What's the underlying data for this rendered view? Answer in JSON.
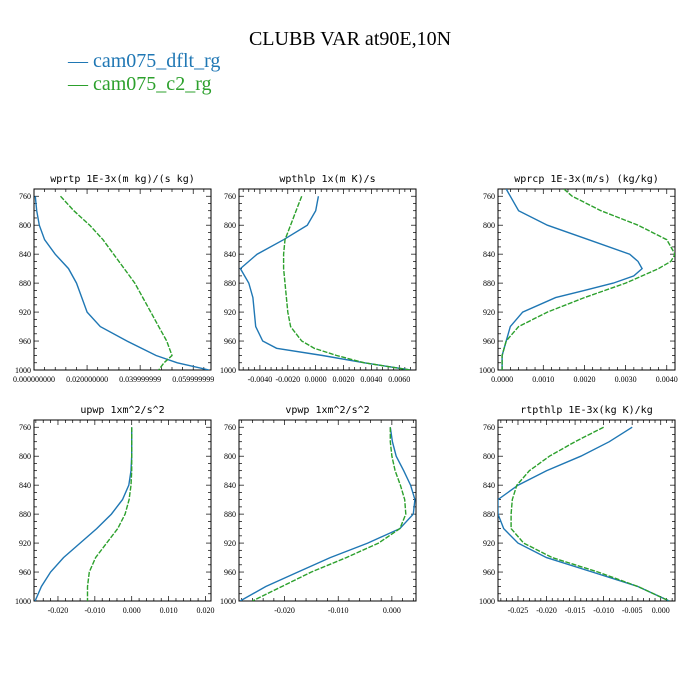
{
  "title": "CLUBB VAR at90E,10N",
  "legend": [
    {
      "label": "— cam075_dflt_rg",
      "color": "#1f77b4"
    },
    {
      "label": "— cam075_c2_rg",
      "color": "#2ca02c"
    }
  ],
  "chart_data": [
    {
      "type": "line",
      "title": "wprtp  1E-3x(m kg)/(s kg)",
      "xlim": [
        0.0,
        0.0667
      ],
      "ylim": [
        1000,
        750
      ],
      "xticks": [
        0.0,
        0.02,
        0.04,
        0.06
      ],
      "xtick_labels": [
        "0.000000000",
        "0.020000000",
        "0.039999999",
        "0.059999999"
      ],
      "yticks": [
        760,
        800,
        840,
        880,
        920,
        960,
        1000
      ],
      "y": [
        760,
        780,
        800,
        820,
        840,
        860,
        880,
        900,
        920,
        940,
        960,
        980,
        990,
        1000
      ],
      "series": [
        {
          "name": "cam075_dflt_rg",
          "color": "#1f77b4",
          "x": [
            0.0005,
            0.001,
            0.002,
            0.004,
            0.008,
            0.013,
            0.016,
            0.018,
            0.02,
            0.025,
            0.035,
            0.046,
            0.054,
            0.066
          ]
        },
        {
          "name": "cam075_c2_rg",
          "color": "#2ca02c",
          "x": [
            0.01,
            0.015,
            0.021,
            0.026,
            0.03,
            0.034,
            0.038,
            0.041,
            0.044,
            0.047,
            0.05,
            0.052,
            0.049,
            0.047
          ]
        }
      ]
    },
    {
      "type": "line",
      "title": "wpthlp  1x(m K)/s",
      "xlim": [
        -0.0055,
        0.0072
      ],
      "ylim": [
        1000,
        750
      ],
      "xticks": [
        -0.004,
        -0.002,
        0.0,
        0.002,
        0.004,
        0.006
      ],
      "xtick_labels": [
        "-0.0040",
        "-0.0020",
        "0.0000",
        "0.0020",
        "0.0040",
        "0.0060"
      ],
      "yticks": [
        760,
        800,
        840,
        880,
        920,
        960,
        1000
      ],
      "y": [
        760,
        780,
        800,
        820,
        840,
        860,
        880,
        900,
        920,
        940,
        960,
        970,
        980,
        990,
        1000
      ],
      "series": [
        {
          "name": "cam075_dflt_rg",
          "color": "#1f77b4",
          "x": [
            0.0002,
            0.0,
            -0.0006,
            -0.0023,
            -0.0042,
            -0.0054,
            -0.0048,
            -0.0045,
            -0.0044,
            -0.0043,
            -0.0038,
            -0.0028,
            0.0005,
            0.0035,
            0.0068
          ]
        },
        {
          "name": "cam075_c2_rg",
          "color": "#2ca02c",
          "x": [
            -0.001,
            -0.0014,
            -0.0018,
            -0.0022,
            -0.0023,
            -0.0023,
            -0.0022,
            -0.0021,
            -0.002,
            -0.0018,
            -0.001,
            -0.0001,
            0.0015,
            0.0035,
            0.0068
          ]
        }
      ]
    },
    {
      "type": "line",
      "title": "wprcp  1E-3x(m/s) (kg/kg)",
      "xlim": [
        -0.0001,
        0.0042
      ],
      "ylim": [
        1000,
        750
      ],
      "xticks": [
        0.0,
        0.001,
        0.002,
        0.003,
        0.004
      ],
      "xtick_labels": [
        "0.0000",
        "0.0010",
        "0.0020",
        "0.0030",
        "0.0040"
      ],
      "yticks": [
        760,
        800,
        840,
        880,
        920,
        960,
        1000
      ],
      "y": [
        750,
        760,
        780,
        800,
        820,
        840,
        850,
        860,
        870,
        880,
        890,
        900,
        920,
        940,
        960,
        980,
        1000
      ],
      "series": [
        {
          "name": "cam075_dflt_rg",
          "color": "#1f77b4",
          "x": [
            0.0001,
            0.0002,
            0.0004,
            0.0011,
            0.0021,
            0.0031,
            0.0033,
            0.0034,
            0.0032,
            0.0027,
            0.002,
            0.0013,
            0.0005,
            0.0002,
            0.0001,
            0.0,
            0.0
          ]
        },
        {
          "name": "cam075_c2_rg",
          "color": "#2ca02c",
          "x": [
            0.0015,
            0.0017,
            0.0024,
            0.0033,
            0.004,
            0.0042,
            0.0041,
            0.0038,
            0.0034,
            0.003,
            0.0025,
            0.002,
            0.0011,
            0.0004,
            0.0001,
            0.0,
            0.0
          ]
        }
      ]
    },
    {
      "type": "line",
      "title": "upwp  1xm^2/s^2",
      "xlim": [
        -0.0265,
        0.0215
      ],
      "ylim": [
        1000,
        750
      ],
      "xticks": [
        -0.02,
        -0.01,
        0.0,
        0.01,
        0.02
      ],
      "xtick_labels": [
        "-0.020",
        "-0.010",
        "0.000",
        "0.010",
        "0.020"
      ],
      "yticks": [
        760,
        800,
        840,
        880,
        920,
        960,
        1000
      ],
      "y": [
        760,
        780,
        800,
        820,
        840,
        860,
        880,
        900,
        920,
        940,
        960,
        980,
        1000
      ],
      "series": [
        {
          "name": "cam075_dflt_rg",
          "color": "#1f77b4",
          "x": [
            0.0,
            0.0,
            0.0,
            -0.0002,
            -0.0008,
            -0.0025,
            -0.0055,
            -0.0095,
            -0.014,
            -0.0185,
            -0.022,
            -0.0245,
            -0.0262
          ]
        },
        {
          "name": "cam075_c2_rg",
          "color": "#2ca02c",
          "x": [
            0.0,
            0.0,
            0.0,
            0.0,
            -0.0002,
            -0.0007,
            -0.0018,
            -0.0038,
            -0.0068,
            -0.0098,
            -0.0115,
            -0.012,
            -0.012
          ]
        }
      ]
    },
    {
      "type": "line",
      "title": "vpwp  1xm^2/s^2",
      "xlim": [
        -0.0285,
        0.0045
      ],
      "ylim": [
        1000,
        750
      ],
      "xticks": [
        -0.02,
        -0.01,
        0.0
      ],
      "xtick_labels": [
        "-0.020",
        "-0.010",
        "0.000"
      ],
      "yticks": [
        760,
        800,
        840,
        880,
        920,
        960,
        1000
      ],
      "y": [
        760,
        780,
        800,
        820,
        840,
        860,
        880,
        900,
        920,
        940,
        960,
        980,
        1000
      ],
      "series": [
        {
          "name": "cam075_dflt_rg",
          "color": "#1f77b4",
          "x": [
            -0.0003,
            0.0001,
            0.0008,
            0.0022,
            0.0035,
            0.0043,
            0.004,
            0.0015,
            -0.0045,
            -0.0115,
            -0.0175,
            -0.0235,
            -0.0283
          ]
        },
        {
          "name": "cam075_c2_rg",
          "color": "#2ca02c",
          "x": [
            -0.0003,
            -0.0003,
            0.0,
            0.0006,
            0.0016,
            0.0024,
            0.0026,
            0.0015,
            -0.0025,
            -0.0085,
            -0.015,
            -0.0205,
            -0.026
          ]
        }
      ]
    },
    {
      "type": "line",
      "title": "rtpthlp  1E-3x(kg K)/kg",
      "xlim": [
        -0.0285,
        0.0025
      ],
      "ylim": [
        1000,
        750
      ],
      "xticks": [
        -0.025,
        -0.02,
        -0.015,
        -0.01,
        -0.005,
        0.0
      ],
      "xtick_labels": [
        "-0.025",
        "-0.020",
        "-0.015",
        "-0.010",
        "-0.005",
        "0.000"
      ],
      "yticks": [
        760,
        800,
        840,
        880,
        920,
        960,
        1000
      ],
      "y": [
        760,
        780,
        800,
        820,
        840,
        860,
        880,
        900,
        920,
        940,
        960,
        980,
        1000
      ],
      "series": [
        {
          "name": "cam075_dflt_rg",
          "color": "#1f77b4",
          "x": [
            -0.005,
            -0.009,
            -0.014,
            -0.02,
            -0.025,
            -0.0285,
            -0.0285,
            -0.0275,
            -0.025,
            -0.02,
            -0.012,
            -0.004,
            0.0015
          ]
        },
        {
          "name": "cam075_c2_rg",
          "color": "#2ca02c",
          "x": [
            -0.01,
            -0.015,
            -0.0195,
            -0.023,
            -0.0252,
            -0.026,
            -0.0262,
            -0.0262,
            -0.024,
            -0.019,
            -0.011,
            -0.004,
            0.0015
          ]
        }
      ]
    }
  ]
}
